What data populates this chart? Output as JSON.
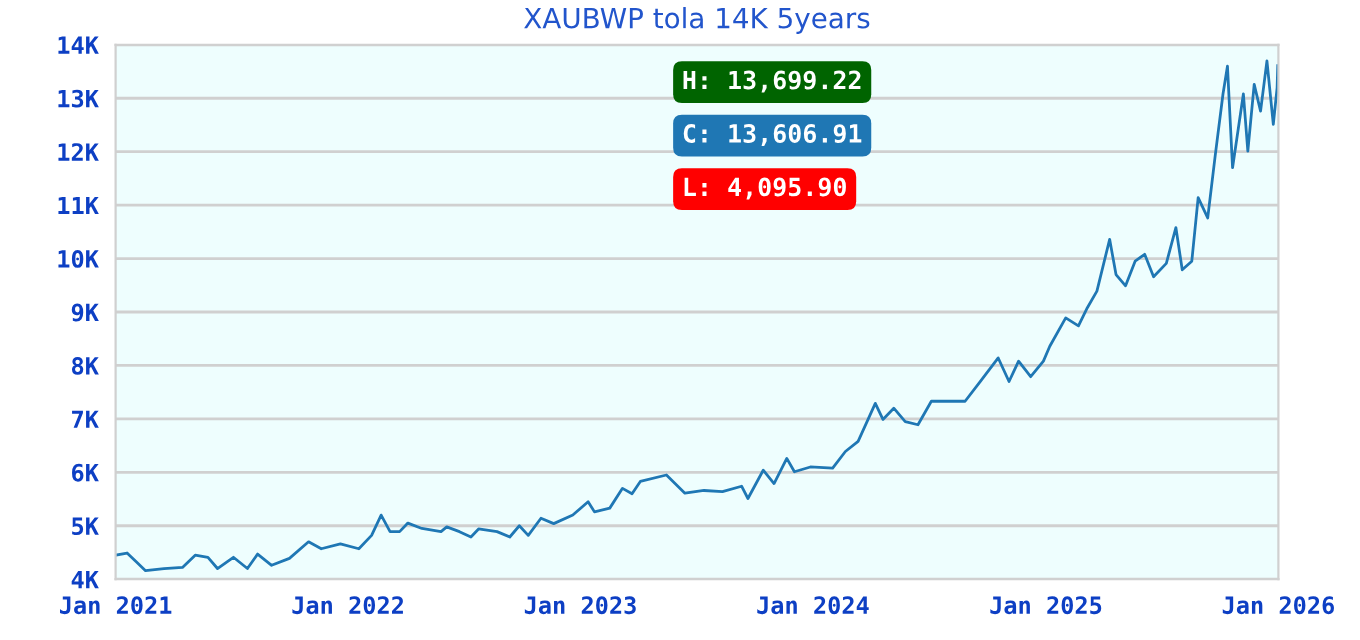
{
  "chart_data": {
    "type": "line",
    "title": "XAUBWP tola 14K 5years",
    "x": [
      "2021-01-01",
      "2021-01-19",
      "2021-02-02",
      "2021-02-17",
      "2021-03-18",
      "2021-04-16",
      "2021-05-06",
      "2021-05-26",
      "2021-06-10",
      "2021-07-05",
      "2021-07-27",
      "2021-08-12",
      "2021-09-03",
      "2021-10-01",
      "2021-10-31",
      "2021-11-20",
      "2021-12-20",
      "2022-01-18",
      "2022-02-07",
      "2022-02-22",
      "2022-03-08",
      "2022-03-23",
      "2022-04-05",
      "2022-04-27",
      "2022-05-27",
      "2022-06-05",
      "2022-06-25",
      "2022-07-13",
      "2022-07-25",
      "2022-08-23",
      "2022-09-12",
      "2022-09-27",
      "2022-10-11",
      "2022-10-31",
      "2022-11-20",
      "2022-12-20",
      "2023-01-13",
      "2023-01-23",
      "2023-02-16",
      "2023-03-08",
      "2023-03-23",
      "2023-04-05",
      "2023-05-16",
      "2023-06-14",
      "2023-07-14",
      "2023-08-12",
      "2023-09-11",
      "2023-09-21",
      "2023-10-15",
      "2023-11-01",
      "2023-11-21",
      "2023-12-03",
      "2023-12-28",
      "2024-02-01",
      "2024-02-21",
      "2024-03-12",
      "2024-04-08",
      "2024-04-20",
      "2024-05-07",
      "2024-05-25",
      "2024-06-14",
      "2024-07-05",
      "2024-08-02",
      "2024-08-27",
      "2024-09-20",
      "2024-10-18",
      "2024-11-04",
      "2024-11-19",
      "2024-12-08",
      "2024-12-28",
      "2025-01-07",
      "2025-02-01",
      "2025-02-21",
      "2025-03-07",
      "2025-03-22",
      "2025-04-11",
      "2025-04-21",
      "2025-05-06",
      "2025-05-21",
      "2025-06-05",
      "2025-06-19",
      "2025-07-09",
      "2025-07-24",
      "2025-08-03",
      "2025-08-18",
      "2025-08-28",
      "2025-09-12",
      "2025-09-24",
      "2025-10-06",
      "2025-10-13",
      "2025-10-21",
      "2025-11-07",
      "2025-11-14",
      "2025-11-24",
      "2025-12-04",
      "2025-12-14",
      "2025-12-24",
      "2025-12-30",
      "2025-12-31"
    ],
    "series": [
      {
        "color": "#1f77b4",
        "values": [
          4450,
          4490,
          4330,
          4160,
          4200,
          4220,
          4450,
          4410,
          4200,
          4410,
          4200,
          4470,
          4260,
          4390,
          4700,
          4570,
          4660,
          4570,
          4820,
          5200,
          4890,
          4890,
          5050,
          4950,
          4890,
          4980,
          4890,
          4790,
          4940,
          4890,
          4790,
          5000,
          4820,
          5140,
          5040,
          5200,
          5450,
          5260,
          5330,
          5700,
          5600,
          5830,
          5950,
          5610,
          5660,
          5640,
          5740,
          5510,
          6040,
          5790,
          6260,
          6010,
          6100,
          6080,
          6390,
          6580,
          7290,
          6990,
          7200,
          6950,
          6890,
          7330,
          7330,
          7330,
          7700,
          8140,
          7700,
          8080,
          7790,
          8080,
          8360,
          8890,
          8740,
          9080,
          9390,
          10360,
          9700,
          9490,
          9950,
          10080,
          9660,
          9910,
          10580,
          9790,
          9950,
          11140,
          10760,
          11950,
          13080,
          13600,
          11700,
          13080,
          12010,
          13260,
          12760,
          13700,
          12510,
          13200,
          13610
        ]
      }
    ],
    "xlim": [
      "2021-01-01",
      "2026-01-01"
    ],
    "xticks": [
      {
        "value": "2021-01-01",
        "label": "Jan 2021"
      },
      {
        "value": "2022-01-01",
        "label": "Jan 2022"
      },
      {
        "value": "2023-01-01",
        "label": "Jan 2023"
      },
      {
        "value": "2024-01-01",
        "label": "Jan 2024"
      },
      {
        "value": "2025-01-01",
        "label": "Jan 2025"
      },
      {
        "value": "2026-01-01",
        "label": "Jan 2026"
      }
    ],
    "ylim": [
      4000,
      14000
    ],
    "yticks": [
      {
        "value": 4000,
        "label": "4K"
      },
      {
        "value": 5000,
        "label": "5K"
      },
      {
        "value": 6000,
        "label": "6K"
      },
      {
        "value": 7000,
        "label": "7K"
      },
      {
        "value": 8000,
        "label": "8K"
      },
      {
        "value": 9000,
        "label": "9K"
      },
      {
        "value": 10000,
        "label": "10K"
      },
      {
        "value": 11000,
        "label": "11K"
      },
      {
        "value": 12000,
        "label": "12K"
      },
      {
        "value": 13000,
        "label": "13K"
      },
      {
        "value": 14000,
        "label": "14K"
      }
    ],
    "grid": "y",
    "annotations": [
      "H: 13,699.22",
      "C: 13,606.91",
      "L: 4,095.90"
    ]
  }
}
